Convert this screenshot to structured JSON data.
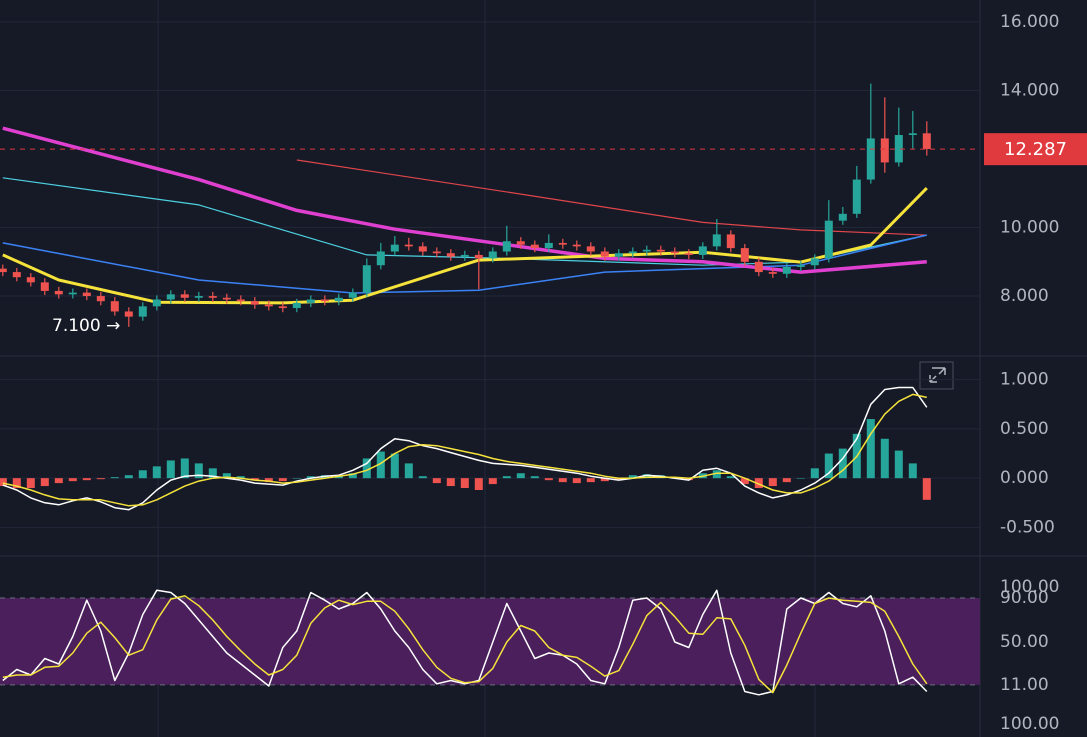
{
  "chart_data": [
    {
      "type": "candlestick",
      "xlim": [
        -0.2,
        69.8
      ],
      "ylim": [
        6.28,
        16.64
      ],
      "yticks": [
        {
          "value": 8,
          "label": "8.000"
        },
        {
          "value": 10,
          "label": "10.000"
        },
        {
          "value": 14,
          "label": "14.000"
        },
        {
          "value": 16,
          "label": "16.000"
        }
      ],
      "grid": true,
      "up_color": "#26a69a",
      "down_color": "#ef5350",
      "ohlc": [
        [
          8.8,
          8.92,
          8.58,
          8.7
        ],
        [
          8.7,
          8.82,
          8.43,
          8.55
        ],
        [
          8.55,
          8.67,
          8.28,
          8.4
        ],
        [
          8.4,
          8.52,
          8.03,
          8.15
        ],
        [
          8.15,
          8.27,
          7.93,
          8.05
        ],
        [
          8.05,
          8.22,
          7.93,
          8.1
        ],
        [
          8.1,
          8.22,
          7.88,
          8.0
        ],
        [
          8.0,
          8.12,
          7.73,
          7.85
        ],
        [
          7.85,
          7.97,
          7.43,
          7.55
        ],
        [
          7.55,
          7.67,
          7.1,
          7.4
        ],
        [
          7.4,
          7.82,
          7.28,
          7.7
        ],
        [
          7.7,
          8.02,
          7.58,
          7.9
        ],
        [
          7.9,
          8.17,
          7.78,
          8.05
        ],
        [
          8.05,
          8.17,
          7.83,
          7.95
        ],
        [
          7.95,
          8.12,
          7.83,
          8.0
        ],
        [
          8.0,
          8.12,
          7.83,
          7.95
        ],
        [
          7.95,
          8.07,
          7.78,
          7.9
        ],
        [
          7.9,
          8.02,
          7.73,
          7.85
        ],
        [
          7.85,
          7.97,
          7.63,
          7.75
        ],
        [
          7.75,
          7.87,
          7.58,
          7.7
        ],
        [
          7.7,
          7.82,
          7.53,
          7.65
        ],
        [
          7.65,
          7.92,
          7.53,
          7.8
        ],
        [
          7.8,
          8.02,
          7.68,
          7.9
        ],
        [
          7.9,
          8.02,
          7.73,
          7.85
        ],
        [
          7.85,
          8.07,
          7.73,
          7.95
        ],
        [
          7.95,
          8.22,
          7.83,
          8.1
        ],
        [
          8.1,
          9.1,
          7.98,
          8.9
        ],
        [
          8.9,
          9.55,
          8.78,
          9.3
        ],
        [
          9.3,
          9.75,
          9.18,
          9.5
        ],
        [
          9.5,
          9.7,
          9.33,
          9.45
        ],
        [
          9.45,
          9.57,
          9.18,
          9.3
        ],
        [
          9.3,
          9.42,
          9.13,
          9.25
        ],
        [
          9.25,
          9.37,
          9.03,
          9.15
        ],
        [
          9.15,
          9.32,
          9.03,
          9.2
        ],
        [
          9.2,
          9.32,
          8.2,
          9.1
        ],
        [
          9.1,
          9.42,
          8.98,
          9.3
        ],
        [
          9.3,
          10.05,
          9.18,
          9.6
        ],
        [
          9.6,
          9.72,
          9.38,
          9.5
        ],
        [
          9.5,
          9.62,
          9.28,
          9.4
        ],
        [
          9.4,
          9.8,
          9.28,
          9.55
        ],
        [
          9.55,
          9.67,
          9.38,
          9.5
        ],
        [
          9.5,
          9.62,
          9.33,
          9.45
        ],
        [
          9.45,
          9.57,
          9.18,
          9.3
        ],
        [
          9.3,
          9.42,
          9.03,
          9.15
        ],
        [
          9.15,
          9.37,
          9.03,
          9.25
        ],
        [
          9.25,
          9.42,
          9.13,
          9.3
        ],
        [
          9.3,
          9.47,
          9.18,
          9.35
        ],
        [
          9.35,
          9.47,
          9.18,
          9.3
        ],
        [
          9.3,
          9.42,
          9.13,
          9.25
        ],
        [
          9.25,
          9.37,
          9.08,
          9.2
        ],
        [
          9.2,
          9.57,
          9.08,
          9.45
        ],
        [
          9.45,
          10.25,
          9.33,
          9.8
        ],
        [
          9.8,
          9.92,
          9.28,
          9.4
        ],
        [
          9.4,
          9.52,
          8.88,
          9.0
        ],
        [
          9.0,
          9.12,
          8.58,
          8.7
        ],
        [
          8.7,
          8.82,
          8.53,
          8.65
        ],
        [
          8.65,
          8.97,
          8.53,
          8.85
        ],
        [
          8.85,
          9.02,
          8.73,
          8.9
        ],
        [
          8.9,
          9.22,
          8.78,
          9.1
        ],
        [
          9.1,
          10.8,
          8.98,
          10.2
        ],
        [
          10.2,
          10.6,
          10.08,
          10.4
        ],
        [
          10.4,
          11.8,
          10.28,
          11.4
        ],
        [
          11.4,
          14.2,
          11.28,
          12.6
        ],
        [
          12.6,
          13.8,
          11.6,
          11.9
        ],
        [
          11.9,
          13.5,
          11.78,
          12.7
        ],
        [
          12.7,
          13.4,
          12.3,
          12.75
        ],
        [
          12.75,
          13.1,
          12.1,
          12.29
        ]
      ],
      "lines": [
        {
          "color": "#e0464b",
          "width": 1.2,
          "x": [
            21,
            35,
            50,
            57,
            66
          ],
          "values": [
            11.97,
            11.1,
            10.15,
            9.93,
            9.78
          ]
        },
        {
          "color": "#4dd0e1",
          "width": 1.2,
          "x": [
            0,
            14,
            26,
            35,
            50,
            57,
            66
          ],
          "values": [
            11.45,
            10.66,
            9.2,
            9.11,
            8.9,
            8.99,
            9.78
          ]
        },
        {
          "color": "#3b82f6",
          "width": 1.5,
          "x": [
            0,
            14,
            25,
            34,
            43,
            57,
            66
          ],
          "values": [
            9.55,
            8.47,
            8.09,
            8.17,
            8.7,
            8.9,
            9.78
          ]
        },
        {
          "color": "#e040d0",
          "width": 3.5,
          "x": [
            0,
            14,
            21,
            28,
            36,
            43,
            50,
            57,
            66
          ],
          "values": [
            12.9,
            11.4,
            10.5,
            9.95,
            9.5,
            9.1,
            9.0,
            8.7,
            9.0
          ]
        },
        {
          "color": "#f5e23b",
          "width": 3,
          "x": [
            0,
            4,
            11,
            20,
            25,
            34,
            50,
            57,
            62,
            66
          ],
          "values": [
            9.2,
            8.47,
            7.82,
            7.8,
            7.88,
            9.05,
            9.28,
            8.99,
            9.49,
            11.15
          ]
        }
      ],
      "price_line": {
        "value": 12.287,
        "label": "12.287",
        "color": "#e0393e"
      },
      "annotation": "7.100 →"
    },
    {
      "type": "macd",
      "xlim": [
        -0.2,
        69.8
      ],
      "ylim": [
        -0.78,
        1.22
      ],
      "yticks": [
        {
          "value": -0.5,
          "label": "-0.500"
        },
        {
          "value": 0,
          "label": "0.000"
        },
        {
          "value": 0.5,
          "label": "0.500"
        },
        {
          "value": 1,
          "label": "1.000"
        }
      ],
      "grid": true,
      "up_color": "#26a69a",
      "down_color": "#ef5350",
      "histogram": [
        -0.08,
        -0.1,
        -0.1,
        -0.08,
        -0.05,
        -0.03,
        -0.02,
        -0.01,
        0.01,
        0.03,
        0.08,
        0.12,
        0.18,
        0.2,
        0.15,
        0.1,
        0.05,
        0.02,
        -0.02,
        -0.04,
        -0.03,
        0.0,
        0.02,
        0.03,
        0.02,
        0.05,
        0.2,
        0.27,
        0.25,
        0.15,
        0.02,
        -0.05,
        -0.08,
        -0.1,
        -0.12,
        -0.06,
        0.02,
        0.05,
        0.02,
        -0.02,
        -0.04,
        -0.05,
        -0.04,
        -0.03,
        -0.02,
        0.03,
        0.04,
        0.03,
        0.0,
        -0.02,
        0.05,
        0.08,
        0.02,
        -0.06,
        -0.1,
        -0.08,
        -0.04,
        0.0,
        0.1,
        0.25,
        0.3,
        0.45,
        0.6,
        0.4,
        0.28,
        0.15,
        -0.22
      ],
      "lines": [
        {
          "color": "#ffffff",
          "width": 1.5,
          "values": [
            -0.07,
            -0.12,
            -0.2,
            -0.25,
            -0.27,
            -0.23,
            -0.2,
            -0.24,
            -0.3,
            -0.32,
            -0.25,
            -0.12,
            -0.02,
            0.02,
            0.03,
            0.02,
            0.0,
            -0.02,
            -0.05,
            -0.06,
            -0.07,
            -0.03,
            0.0,
            0.02,
            0.03,
            0.08,
            0.15,
            0.3,
            0.4,
            0.38,
            0.33,
            0.3,
            0.26,
            0.22,
            0.18,
            0.15,
            0.14,
            0.13,
            0.11,
            0.09,
            0.07,
            0.05,
            0.02,
            0.0,
            -0.02,
            0.0,
            0.03,
            0.02,
            0.0,
            -0.02,
            0.08,
            0.1,
            0.05,
            -0.08,
            -0.15,
            -0.2,
            -0.17,
            -0.12,
            -0.05,
            0.05,
            0.2,
            0.4,
            0.75,
            0.9,
            0.92,
            0.92,
            0.72
          ]
        },
        {
          "color": "#f5e23b",
          "width": 1.5,
          "values": [
            -0.05,
            -0.08,
            -0.12,
            -0.17,
            -0.21,
            -0.22,
            -0.22,
            -0.22,
            -0.25,
            -0.28,
            -0.27,
            -0.22,
            -0.15,
            -0.08,
            -0.03,
            0.0,
            0.01,
            0.0,
            -0.02,
            -0.03,
            -0.05,
            -0.04,
            -0.02,
            0.0,
            0.02,
            0.04,
            0.08,
            0.15,
            0.25,
            0.32,
            0.34,
            0.33,
            0.3,
            0.27,
            0.24,
            0.2,
            0.17,
            0.15,
            0.13,
            0.11,
            0.09,
            0.07,
            0.05,
            0.02,
            0.0,
            0.0,
            0.01,
            0.01,
            0.01,
            0.0,
            0.02,
            0.05,
            0.05,
            0.0,
            -0.06,
            -0.12,
            -0.15,
            -0.15,
            -0.1,
            -0.03,
            0.08,
            0.22,
            0.45,
            0.65,
            0.78,
            0.85,
            0.82
          ]
        }
      ]
    },
    {
      "type": "stochastic",
      "xlim": [
        -0.2,
        69.8
      ],
      "ylim": [
        -7.3,
        110.9
      ],
      "yticks": [
        {
          "value": 11,
          "label": "11.00"
        },
        {
          "value": 50,
          "label": "50.00"
        },
        {
          "value": 90,
          "label": "90.00"
        },
        {
          "value": 100,
          "label": "100.00"
        }
      ],
      "band": {
        "from": 11,
        "to": 90,
        "color": "#4a1f5c"
      },
      "lines": [
        {
          "color": "#ffffff",
          "width": 1.5,
          "values": [
            15,
            25,
            20,
            35,
            30,
            55,
            88,
            60,
            15,
            40,
            75,
            97,
            95,
            85,
            70,
            55,
            40,
            30,
            20,
            10,
            45,
            60,
            95,
            88,
            80,
            85,
            95,
            80,
            60,
            45,
            25,
            12,
            15,
            12,
            15,
            50,
            85,
            60,
            35,
            40,
            38,
            30,
            15,
            12,
            45,
            88,
            90,
            80,
            50,
            45,
            75,
            97,
            40,
            5,
            2,
            5,
            80,
            90,
            85,
            95,
            85,
            82,
            92,
            60,
            12,
            18,
            5
          ]
        },
        {
          "color": "#f5e23b",
          "width": 1.5,
          "values": [
            18,
            20,
            20,
            27,
            28,
            40,
            58,
            68,
            54,
            38,
            43,
            70,
            89,
            92,
            83,
            70,
            55,
            42,
            30,
            20,
            25,
            38,
            67,
            81,
            88,
            84,
            87,
            87,
            78,
            62,
            43,
            27,
            17,
            13,
            14,
            26,
            50,
            65,
            60,
            45,
            38,
            36,
            28,
            19,
            24,
            48,
            74,
            86,
            73,
            58,
            57,
            72,
            71,
            47,
            16,
            4,
            29,
            58,
            85,
            90,
            88,
            87,
            86,
            78,
            55,
            30,
            12
          ]
        }
      ]
    },
    {
      "type": "axis",
      "ylim": [
        80,
        130
      ],
      "yticks": [
        {
          "value": 100,
          "label": "100.00"
        }
      ]
    }
  ]
}
